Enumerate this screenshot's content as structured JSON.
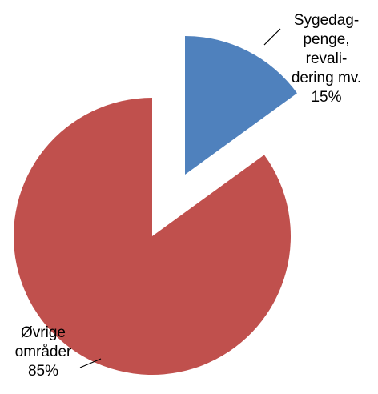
{
  "chart_data": {
    "type": "pie",
    "categories": [
      "Sygedag-\npenge,\nrevali-\ndering mv.",
      "Øvrige\nområder"
    ],
    "values": [
      15,
      85
    ],
    "value_labels": [
      "15%",
      "85%"
    ],
    "colors": [
      "#4f81bd",
      "#c0504d"
    ]
  }
}
